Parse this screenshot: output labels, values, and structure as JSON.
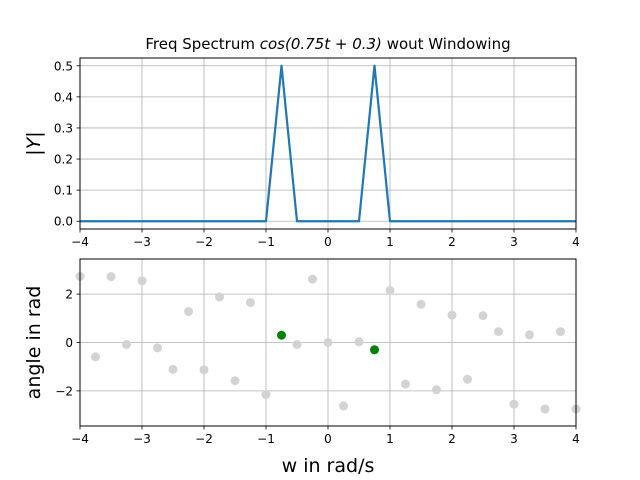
{
  "chart_data": [
    {
      "type": "line",
      "title_text": "Freq Spectrum ",
      "title_math_fn": "cos",
      "title_math_expr": "(0.75t + 0.3)",
      "title_suffix": " wout Windowing",
      "xlabel": "",
      "ylabel": "|Y|",
      "xlim": [
        -4,
        4
      ],
      "ylim": [
        -0.025,
        0.525
      ],
      "grid": true,
      "xticks": [
        -4,
        -3,
        -2,
        -1,
        0,
        1,
        2,
        3,
        4
      ],
      "yticks": [
        0.0,
        0.1,
        0.2,
        0.3,
        0.4,
        0.5
      ],
      "ytick_labels": [
        "0.0",
        "0.1",
        "0.2",
        "0.3",
        "0.4",
        "0.5"
      ],
      "series": [
        {
          "color": "#1f77b4",
          "x": [
            -4,
            -1.0,
            -0.75,
            -0.5,
            0.5,
            0.75,
            1.0,
            4
          ],
          "y": [
            0,
            0,
            0.5,
            0,
            0,
            0.5,
            0,
            0
          ]
        }
      ]
    },
    {
      "type": "scatter",
      "xlabel": "w in rad/s",
      "ylabel": "angle in rad",
      "xlim": [
        -4,
        4
      ],
      "ylim": [
        -3.45,
        3.45
      ],
      "grid": true,
      "xticks": [
        -4,
        -3,
        -2,
        -1,
        0,
        1,
        2,
        3,
        4
      ],
      "yticks": [
        -2,
        0,
        2
      ],
      "series": [
        {
          "color": "#d3d3d3",
          "x": [
            -4.0,
            -3.75,
            -3.5,
            -3.25,
            -3.0,
            -2.75,
            -2.5,
            -2.25,
            -2.0,
            -1.75,
            -1.5,
            -1.25,
            -1.0,
            -0.5,
            -0.25,
            0.0,
            0.25,
            0.5,
            1.0,
            1.25,
            1.5,
            1.75,
            2.0,
            2.25,
            2.5,
            2.75,
            3.0,
            3.25,
            3.5,
            3.75,
            4.0
          ],
          "y": [
            2.73,
            -0.59,
            2.72,
            -0.08,
            2.55,
            -0.22,
            -1.11,
            1.28,
            -1.13,
            1.88,
            -1.58,
            1.65,
            -2.15,
            -0.08,
            2.62,
            0.0,
            -2.62,
            0.03,
            2.15,
            -1.72,
            1.58,
            -1.95,
            1.13,
            -1.52,
            1.11,
            0.45,
            -2.55,
            0.32,
            -2.75,
            0.45,
            -2.75
          ]
        },
        {
          "color": "#008000",
          "x": [
            -0.75,
            0.75
          ],
          "y": [
            0.3,
            -0.3
          ]
        }
      ]
    }
  ]
}
